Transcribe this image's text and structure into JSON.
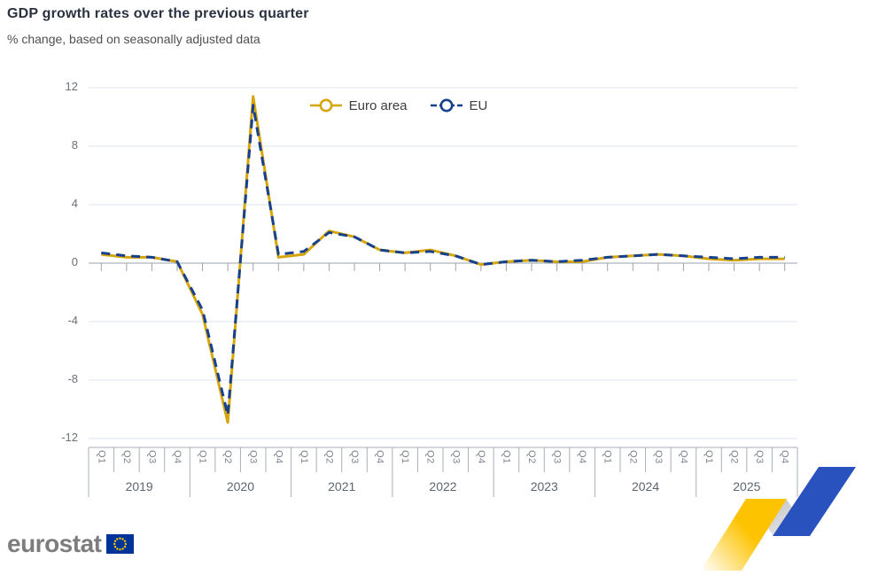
{
  "header": {
    "title": "GDP growth rates over the previous quarter",
    "subtitle": "% change, based on seasonally adjusted data"
  },
  "chart_data": {
    "type": "line",
    "title": "GDP growth rates over the previous quarter",
    "subtitle": "% change, based on seasonally adjusted data",
    "x_years": [
      "2019",
      "2020",
      "2021",
      "2022",
      "2023",
      "2024",
      "2025"
    ],
    "quarter_labels": [
      "Q1",
      "Q2",
      "Q3",
      "Q4"
    ],
    "yticks": [
      12,
      8,
      4,
      0,
      -4,
      -8,
      -12
    ],
    "ylim": [
      -12,
      12
    ],
    "grid": "horizontal",
    "legend_position": "top-center",
    "series": [
      {
        "name": "Euro area",
        "color": "#D5A50A",
        "dash": "solid",
        "values": [
          0.6,
          0.4,
          0.4,
          0.1,
          -3.5,
          -10.9,
          11.4,
          0.4,
          0.6,
          2.2,
          1.8,
          0.9,
          0.7,
          0.9,
          0.5,
          -0.1,
          0.1,
          0.2,
          0.1,
          0.1,
          0.4,
          0.5,
          0.6,
          0.5,
          0.3,
          0.2,
          0.3,
          0.3
        ]
      },
      {
        "name": "EU",
        "color": "#17408F",
        "dash": "dashed",
        "values": [
          0.7,
          0.5,
          0.4,
          0.1,
          -3.2,
          -10.4,
          10.8,
          0.6,
          0.8,
          2.1,
          1.8,
          0.9,
          0.7,
          0.8,
          0.5,
          -0.1,
          0.1,
          0.2,
          0.1,
          0.2,
          0.4,
          0.5,
          0.6,
          0.5,
          0.4,
          0.3,
          0.4,
          0.4
        ]
      }
    ]
  },
  "footer": {
    "logo_text": "eurostat"
  },
  "colors": {
    "gridline": "#dce6f1",
    "zero_line": "#9aa3ab",
    "axis_box_line": "#a9afb8",
    "eu_flag_blue": "#003399",
    "eu_flag_star": "#FFCC00",
    "ribbon_yellow": "#FDC300",
    "ribbon_gray": "#c9c9c9",
    "ribbon_blue": "#2A52BE"
  }
}
